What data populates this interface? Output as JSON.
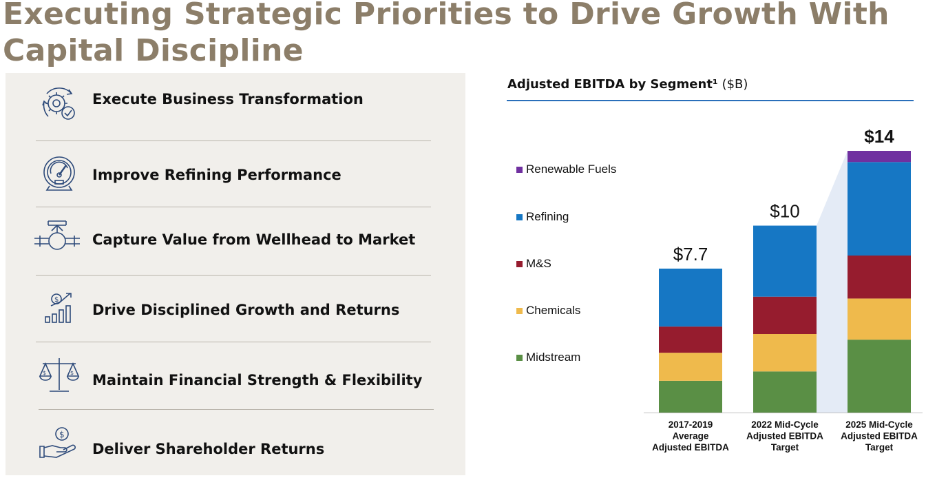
{
  "title": "Executing Strategic Priorities to Drive Growth With Capital Discipline",
  "priorities": [
    {
      "label": "Execute Business Transformation",
      "icon": "gear-check-icon"
    },
    {
      "label": "Improve Refining Performance",
      "icon": "gauge-icon"
    },
    {
      "label": "Capture Value from Wellhead to Market",
      "icon": "valve-pipeline-icon"
    },
    {
      "label": "Drive Disciplined Growth and Returns",
      "icon": "growth-bars-icon"
    },
    {
      "label": "Maintain Financial Strength & Flexibility",
      "icon": "balance-scale-icon"
    },
    {
      "label": "Deliver Shareholder Returns",
      "icon": "hand-coin-icon"
    }
  ],
  "chart_data": {
    "type": "bar",
    "stacked": true,
    "title": "Adjusted EBITDA by Segment¹",
    "title_unit": "($B)",
    "categories": [
      [
        "2017-2019",
        "Average",
        "Adjusted EBITDA"
      ],
      [
        "2022 Mid-Cycle",
        "Adjusted EBITDA",
        "Target"
      ],
      [
        "2025 Mid-Cycle",
        "Adjusted EBITDA",
        "Target"
      ]
    ],
    "totals": [
      "$7.7",
      "$10",
      "$14"
    ],
    "total_values": [
      7.7,
      10,
      14
    ],
    "ylim": [
      0,
      14
    ],
    "legend_position": "left",
    "series": [
      {
        "name": "Midstream",
        "color": "#5a8f45",
        "values": [
          1.7,
          2.2,
          3.9
        ]
      },
      {
        "name": "Chemicals",
        "color": "#efba4c",
        "values": [
          1.5,
          2.0,
          2.2
        ]
      },
      {
        "name": "M&S",
        "color": "#961c2e",
        "values": [
          1.4,
          2.0,
          2.3
        ]
      },
      {
        "name": "Refining",
        "color": "#1677c4",
        "values": [
          3.1,
          3.8,
          5.0
        ]
      },
      {
        "name": "Renewable Fuels",
        "color": "#7030a0",
        "values": [
          0,
          0,
          0.6
        ]
      }
    ]
  }
}
